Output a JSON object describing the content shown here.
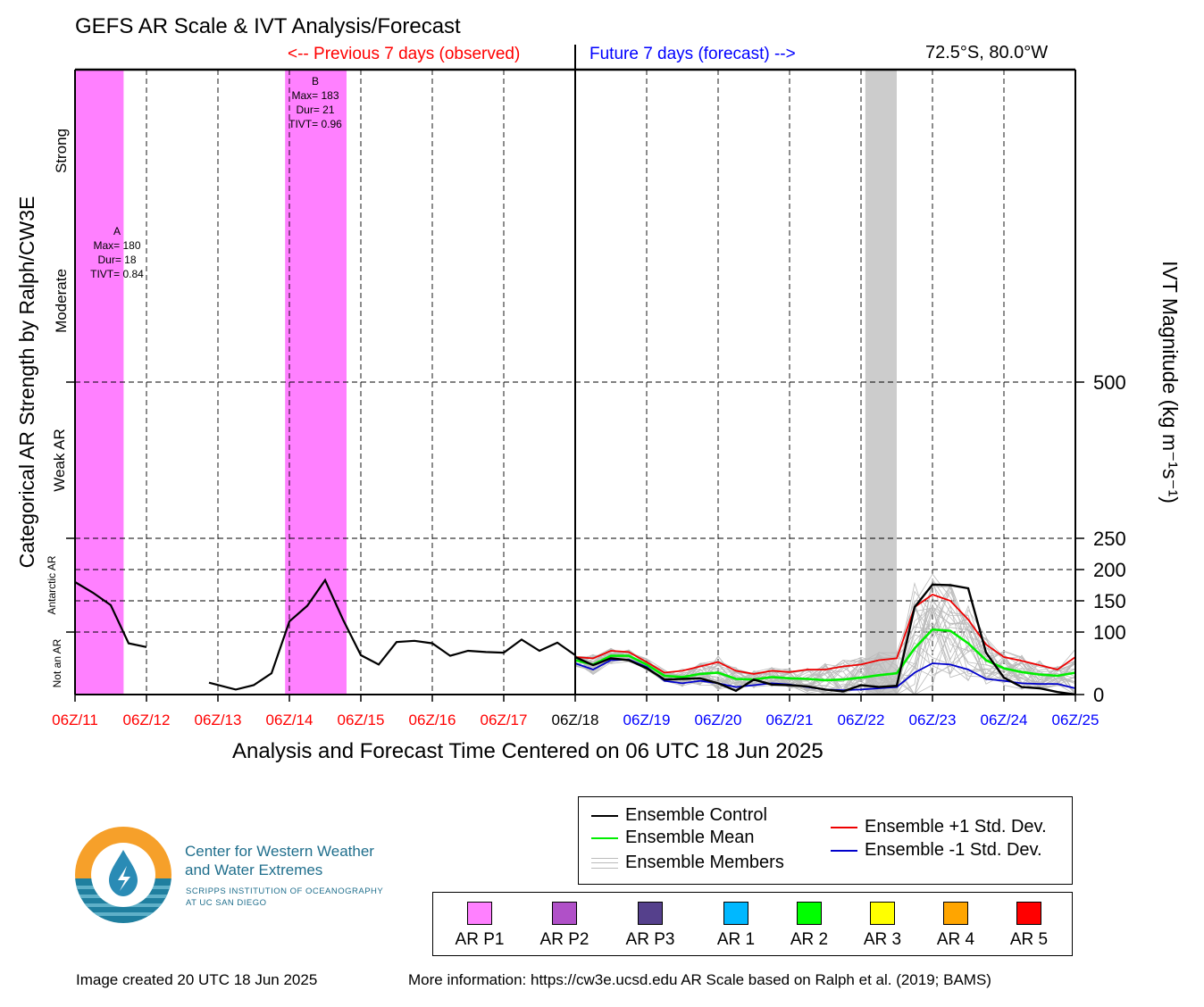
{
  "header": {
    "title": "GEFS AR Scale & IVT Analysis/Forecast",
    "previous_label": "<-- Previous 7 days (observed)",
    "future_label": "Future 7 days (forecast) -->",
    "location": "72.5°S, 80.0°W"
  },
  "colors": {
    "observed": "#ff0000",
    "forecast": "#0000ff",
    "ar_p1": "#ff80ff",
    "ensemble_control": "#000000",
    "ensemble_mean": "#00ee00",
    "plus_std": "#ee0000",
    "minus_std": "#0000cc",
    "members": "#bbbbbb",
    "shading": "#cccccc"
  },
  "chart_data": {
    "type": "line",
    "xlabel": "Analysis and Forecast Time Centered on 06 UTC 18 Jun 2025",
    "ylabel_left": "Categorical AR Strength by Ralph/CW3E",
    "ylabel_right": "IVT Magnitude (kg m⁻¹s⁻¹)",
    "x_ticks": [
      "06Z/11",
      "06Z/12",
      "06Z/13",
      "06Z/14",
      "06Z/15",
      "06Z/16",
      "06Z/17",
      "06Z/18",
      "06Z/19",
      "06Z/20",
      "06Z/21",
      "06Z/22",
      "06Z/23",
      "06Z/24",
      "06Z/25"
    ],
    "x_tick_colors": [
      "#ff0000",
      "#ff0000",
      "#ff0000",
      "#ff0000",
      "#ff0000",
      "#ff0000",
      "#ff0000",
      "#000000",
      "#0000ff",
      "#0000ff",
      "#0000ff",
      "#0000ff",
      "#0000ff",
      "#0000ff",
      "#0000ff"
    ],
    "xlim_days": [
      0,
      14
    ],
    "y_ticks_right": [
      0,
      100,
      150,
      200,
      250,
      500
    ],
    "ylim": [
      0,
      1000
    ],
    "categories_left": [
      "Not an AR",
      "Antarctic AR",
      "Weak AR",
      "Moderate",
      "Strong"
    ],
    "grid": true,
    "ar_events": [
      {
        "label": "A",
        "max": "Max= 180",
        "dur": "Dur= 18",
        "tivt": "TIVT= 0.84",
        "start": 0.0,
        "end": 0.68,
        "category": "AR P1"
      },
      {
        "label": "B",
        "max": "Max= 183",
        "dur": "Dur= 21",
        "tivt": "TIVT= 0.96",
        "start": 2.94,
        "end": 3.8,
        "category": "AR P1"
      }
    ],
    "gray_shading": {
      "start": 11.06,
      "end": 11.5
    },
    "observed_control": {
      "x": [
        0,
        0.25,
        0.5,
        0.75,
        1.0,
        "gap",
        1.875,
        2.25,
        2.5,
        2.75,
        3.0,
        3.25,
        3.5,
        3.75,
        4.0,
        4.25,
        4.5,
        4.75,
        5.0,
        5.25,
        5.5,
        5.75,
        6.0,
        6.25,
        6.5,
        6.75,
        7.0
      ],
      "y": [
        180,
        163,
        143,
        82,
        76,
        null,
        19,
        8,
        15,
        34,
        117,
        142,
        183,
        120,
        63,
        48,
        84,
        86,
        82,
        62,
        70,
        68,
        67,
        88,
        70,
        83,
        63
      ]
    },
    "series": [
      {
        "name": "Ensemble Control",
        "x": [
          7.0,
          7.25,
          7.5,
          7.75,
          8.0,
          8.25,
          8.5,
          8.75,
          9.0,
          9.25,
          9.5,
          9.75,
          10.0,
          10.25,
          10.5,
          10.75,
          11.0,
          11.25,
          11.5,
          11.75,
          12.0,
          12.25,
          12.5,
          12.75,
          13.0,
          13.25,
          13.5,
          13.75,
          14.0
        ],
        "values": [
          60,
          47,
          58,
          55,
          42,
          24,
          25,
          26,
          18,
          6,
          24,
          16,
          15,
          13,
          8,
          5,
          15,
          12,
          14,
          140,
          176,
          175,
          170,
          67,
          27,
          12,
          10,
          4,
          0
        ]
      },
      {
        "name": "Ensemble Mean",
        "x": [
          7.0,
          7.25,
          7.5,
          7.75,
          8.0,
          8.25,
          8.5,
          8.75,
          9.0,
          9.25,
          9.5,
          9.75,
          10.0,
          10.25,
          10.5,
          10.75,
          11.0,
          11.25,
          11.5,
          11.75,
          12.0,
          12.25,
          12.5,
          12.75,
          13.0,
          13.25,
          13.5,
          13.75,
          14.0
        ],
        "values": [
          55,
          48,
          62,
          62,
          48,
          30,
          28,
          33,
          35,
          25,
          24,
          28,
          26,
          25,
          23,
          24,
          27,
          31,
          34,
          74,
          104,
          102,
          82,
          55,
          42,
          36,
          32,
          30,
          35
        ]
      },
      {
        "name": "Ensemble +1 Std. Dev.",
        "x": [
          7.0,
          7.25,
          7.5,
          7.75,
          8.0,
          8.25,
          8.5,
          8.75,
          9.0,
          9.25,
          9.5,
          9.75,
          10.0,
          10.25,
          10.5,
          10.75,
          11.0,
          11.25,
          11.5,
          11.75,
          12.0,
          12.25,
          12.5,
          12.75,
          13.0,
          13.25,
          13.5,
          13.75,
          14.0
        ],
        "values": [
          60,
          58,
          70,
          68,
          52,
          35,
          38,
          45,
          52,
          38,
          33,
          38,
          36,
          40,
          40,
          45,
          48,
          55,
          58,
          140,
          160,
          150,
          120,
          80,
          60,
          54,
          47,
          40,
          60
        ]
      },
      {
        "name": "Ensemble -1 Std. Dev.",
        "x": [
          7.0,
          7.25,
          7.5,
          7.75,
          8.0,
          8.25,
          8.5,
          8.75,
          9.0,
          9.25,
          9.5,
          9.75,
          10.0,
          10.25,
          10.5,
          10.75,
          11.0,
          11.25,
          11.5,
          11.75,
          12.0,
          12.25,
          12.5,
          12.75,
          13.0,
          13.25,
          13.5,
          13.75,
          14.0
        ],
        "values": [
          50,
          40,
          55,
          56,
          44,
          22,
          18,
          22,
          18,
          12,
          15,
          18,
          16,
          12,
          8,
          7,
          8,
          10,
          12,
          35,
          50,
          48,
          40,
          25,
          22,
          18,
          17,
          17,
          10
        ]
      }
    ],
    "members_label": "Ensemble Members"
  },
  "legend": {
    "control": "Ensemble Control",
    "mean": "Ensemble Mean",
    "members": "Ensemble Members",
    "plus_std": "Ensemble +1 Std. Dev.",
    "minus_std": "Ensemble -1 Std. Dev."
  },
  "ar_categories": [
    {
      "label": "AR P1",
      "color": "#ff80ff"
    },
    {
      "label": "AR P2",
      "color": "#b050c8"
    },
    {
      "label": "AR P3",
      "color": "#55408c"
    },
    {
      "label": "AR 1",
      "color": "#00b8ff"
    },
    {
      "label": "AR 2",
      "color": "#00ff00"
    },
    {
      "label": "AR 3",
      "color": "#ffff00"
    },
    {
      "label": "AR 4",
      "color": "#ffa500"
    },
    {
      "label": "AR 5",
      "color": "#ff0000"
    }
  ],
  "logo": {
    "line1": "Center for Western Weather",
    "line2": "and Water Extremes",
    "line3": "SCRIPPS INSTITUTION OF OCEANOGRAPHY",
    "line4": "AT UC SAN DIEGO"
  },
  "footer": {
    "created": "Image created 20 UTC 18 Jun 2025",
    "info": "More information: https://cw3e.ucsd.edu AR Scale based on Ralph et al. (2019; BAMS)"
  }
}
